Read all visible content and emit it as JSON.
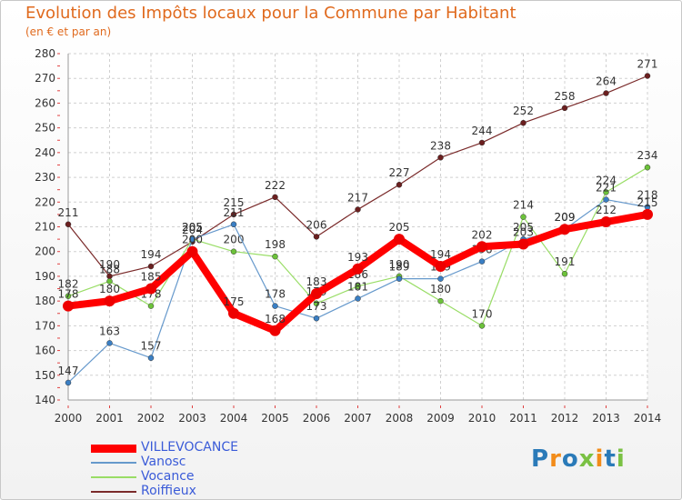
{
  "chart_data": {
    "type": "line",
    "title": "Evolution des Impôts locaux pour la Commune par Habitant",
    "subtitle": "(en € et par an)",
    "xlabel": "",
    "ylabel": "",
    "ylim": [
      140,
      280
    ],
    "yticks": [
      140,
      150,
      160,
      170,
      180,
      190,
      200,
      210,
      220,
      230,
      240,
      250,
      260,
      270,
      280
    ],
    "categories": [
      "2000",
      "2001",
      "2002",
      "2003",
      "2004",
      "2005",
      "2006",
      "2007",
      "2008",
      "2009",
      "2010",
      "2011",
      "2012",
      "2013",
      "2014"
    ],
    "grid": true,
    "legend_position": "bottom-left",
    "series": [
      {
        "name": "Roiffieux",
        "color": "#7a2a2a",
        "marker": "#6b1f1f",
        "width": 1.2,
        "values": [
          211,
          190,
          194,
          204,
          215,
          222,
          206,
          217,
          227,
          238,
          244,
          252,
          258,
          264,
          271
        ]
      },
      {
        "name": "Vocance",
        "color": "#99dd66",
        "marker": "#6cc23a",
        "width": 1.2,
        "values": [
          182,
          188,
          178,
          205,
          200,
          198,
          179,
          186,
          190,
          180,
          170,
          214,
          191,
          224,
          234
        ]
      },
      {
        "name": "Vanosc",
        "color": "#6699cc",
        "marker": "#3a7fc4",
        "width": 1.2,
        "values": [
          147,
          163,
          157,
          205,
          211,
          178,
          173,
          181,
          189,
          189,
          196,
          205,
          209,
          221,
          218
        ]
      },
      {
        "name": "VILLEVOCANCE",
        "color": "#ff0000",
        "marker": "#ee0000",
        "width": 8,
        "values": [
          178,
          180,
          185,
          200,
          175,
          168,
          183,
          193,
          205,
          194,
          202,
          203,
          209,
          212,
          215
        ]
      }
    ],
    "legend_order": [
      "VILLEVOCANCE",
      "Vanosc",
      "Vocance",
      "Roiffieux"
    ]
  },
  "logo": {
    "text": "Proxiti",
    "letters": [
      {
        "ch": "P",
        "color": "#2a7ab8"
      },
      {
        "ch": "r",
        "color": "#f28c1a"
      },
      {
        "ch": "o",
        "color": "#2a7ab8"
      },
      {
        "ch": "x",
        "color": "#7ac143"
      },
      {
        "ch": "i",
        "color": "#f28c1a"
      },
      {
        "ch": "t",
        "color": "#2a7ab8"
      },
      {
        "ch": "i",
        "color": "#7ac143"
      }
    ]
  }
}
